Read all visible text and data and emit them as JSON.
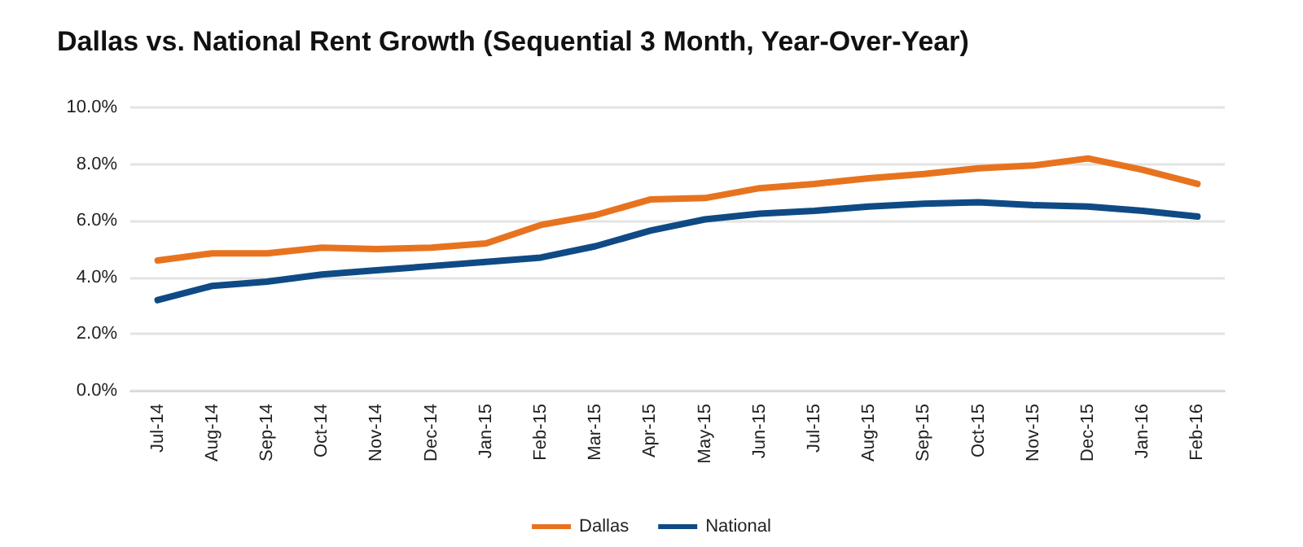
{
  "chart_data": {
    "type": "line",
    "title": "Dallas vs. National Rent Growth (Sequential 3 Month, Year-Over-Year)",
    "categories": [
      "Jul-14",
      "Aug-14",
      "Sep-14",
      "Oct-14",
      "Nov-14",
      "Dec-14",
      "Jan-15",
      "Feb-15",
      "Mar-15",
      "Apr-15",
      "May-15",
      "Jun-15",
      "Jul-15",
      "Aug-15",
      "Sep-15",
      "Oct-15",
      "Nov-15",
      "Dec-15",
      "Jan-16",
      "Feb-16"
    ],
    "series": [
      {
        "name": "Dallas",
        "color": "#e8731f",
        "values": [
          4.6,
          4.85,
          4.85,
          5.05,
          5.0,
          5.05,
          5.2,
          5.85,
          6.2,
          6.75,
          6.8,
          7.15,
          7.3,
          7.5,
          7.65,
          7.85,
          7.95,
          8.2,
          7.8,
          7.3
        ]
      },
      {
        "name": "National",
        "color": "#0f4a85",
        "values": [
          3.2,
          3.7,
          3.85,
          4.1,
          4.25,
          4.4,
          4.55,
          4.7,
          5.1,
          5.65,
          6.05,
          6.25,
          6.35,
          6.5,
          6.6,
          6.65,
          6.55,
          6.5,
          6.35,
          6.15
        ]
      }
    ],
    "ylim": [
      0,
      10
    ],
    "yticks": [
      {
        "value": 0,
        "label": "0.0%"
      },
      {
        "value": 2,
        "label": "2.0%"
      },
      {
        "value": 4,
        "label": "4.0%"
      },
      {
        "value": 6,
        "label": "6.0%"
      },
      {
        "value": 8,
        "label": "8.0%"
      },
      {
        "value": 10,
        "label": "10.0%"
      }
    ],
    "grid": "y",
    "legend": "bottom",
    "marker": "none",
    "line_style": "solid"
  }
}
